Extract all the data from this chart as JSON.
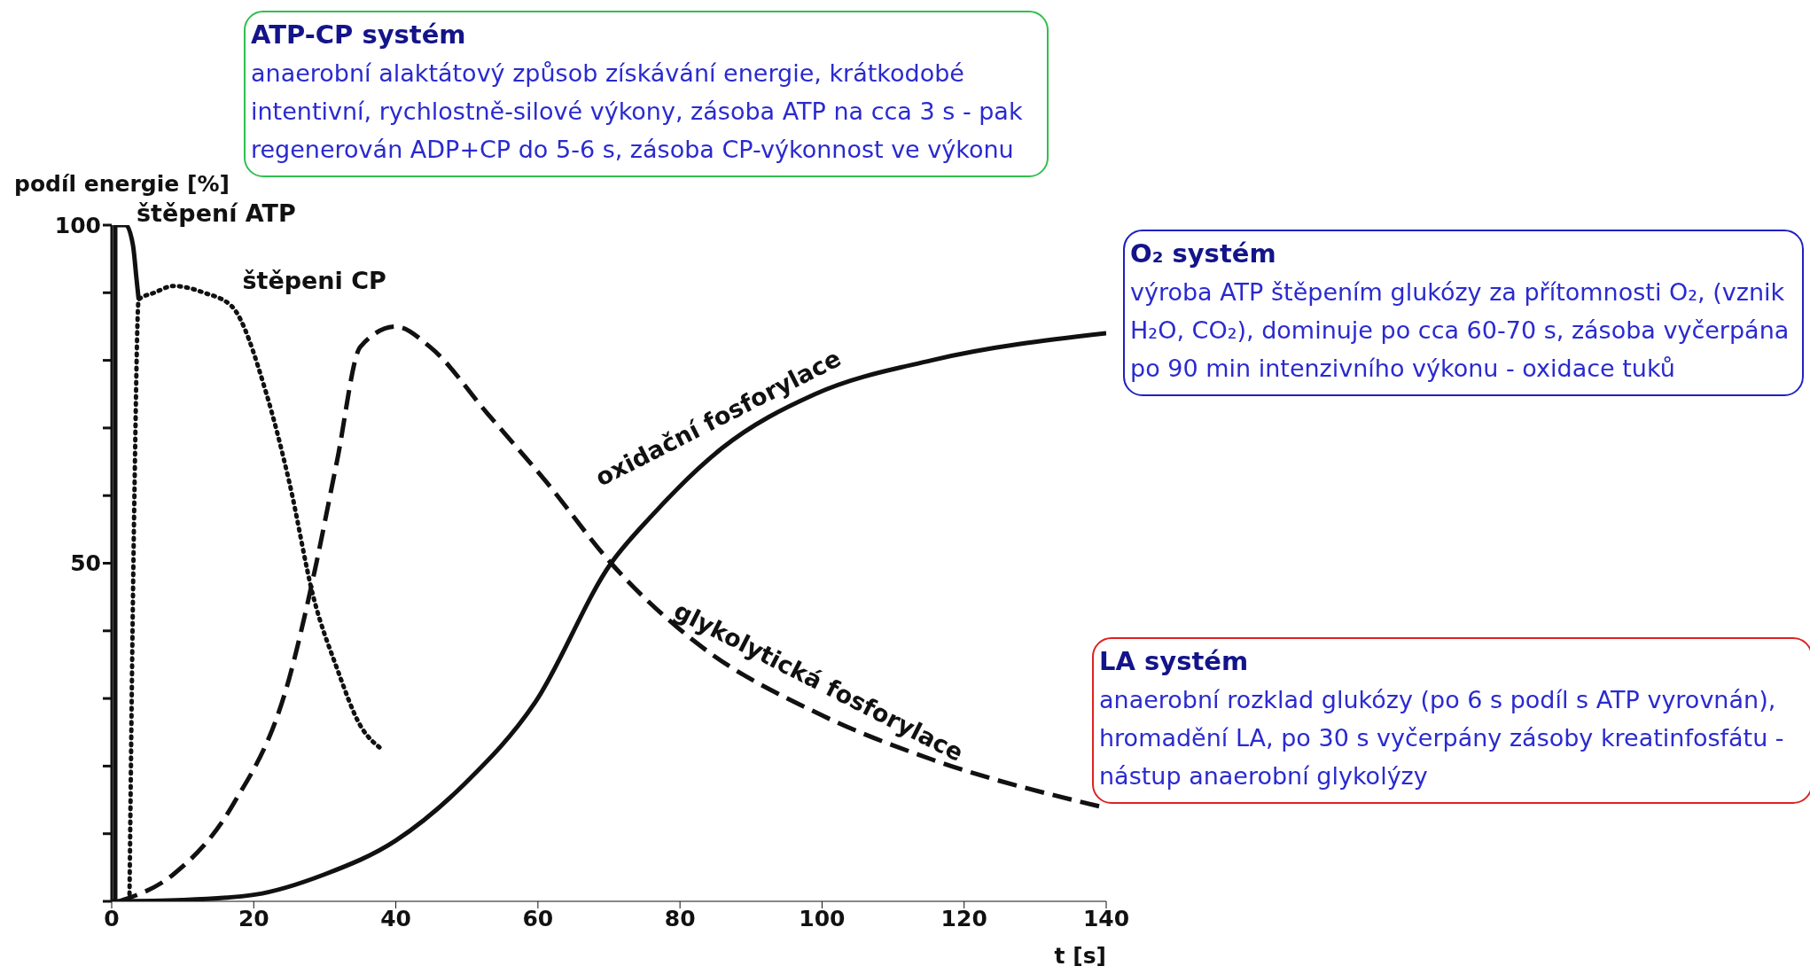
{
  "chart_data": {
    "type": "line",
    "ylabel": "podíl energie [%]",
    "xlabel": "t [s]",
    "xlim": [
      0,
      140
    ],
    "xticks": [
      0,
      20,
      40,
      60,
      80,
      100,
      120,
      140
    ],
    "ylim": [
      0,
      100
    ],
    "yticks": [
      {
        "value": 0,
        "label": null
      },
      {
        "value": 10,
        "label": null
      },
      {
        "value": 20,
        "label": null
      },
      {
        "value": 30,
        "label": null
      },
      {
        "value": 40,
        "label": null
      },
      50,
      {
        "value": 60,
        "label": null
      },
      {
        "value": 70,
        "label": null
      },
      {
        "value": 80,
        "label": null
      },
      {
        "value": 90,
        "label": null
      },
      100
    ],
    "series": [
      {
        "name": "štěpení ATP",
        "color": "#111111",
        "line_style": "solid",
        "x": [
          0.5,
          0.5,
          2,
          3,
          3.5,
          3.8
        ],
        "values": [
          0,
          100,
          100,
          97,
          92,
          89
        ]
      },
      {
        "name": "štěpeni CP",
        "color": "#111111",
        "line_style": "dotted",
        "x": [
          2.5,
          3.2,
          3.8,
          6,
          8.7,
          13,
          16.9,
          21.8,
          25,
          28.4,
          31.7,
          35,
          37.9
        ],
        "values": [
          0,
          60,
          89,
          90,
          91,
          90,
          88,
          75,
          62,
          45,
          34.5,
          26,
          22.6
        ]
      },
      {
        "name": "glykolytická fosforylace",
        "color": "#111111",
        "line_style": "dashed",
        "x": [
          1,
          8.7,
          16.9,
          25,
          28.4,
          31.7,
          35,
          40,
          44.8,
          53,
          61.2,
          70.3,
          82.6,
          99,
          115.4,
          139.2
        ],
        "values": [
          0,
          4,
          14,
          33,
          48,
          65,
          82,
          85,
          82,
          72,
          62,
          50,
          38,
          28,
          21,
          14
        ]
      },
      {
        "name": "oxidační fosforylace",
        "color": "#111111",
        "line_style": "solid",
        "x": [
          0,
          10,
          20.2,
          30,
          40,
          49.8,
          59.6,
          70.3,
          76,
          85.9,
          99,
          115.4,
          140
        ],
        "values": [
          0,
          0.2,
          1,
          4,
          9,
          17.5,
          29.4,
          50,
          57,
          67,
          75,
          80,
          84
        ]
      }
    ],
    "annotations": [
      "ATP-CP systém",
      "anaerobní alaktátový způsob získávání energie, krátkodobé intentivní, rychlostně-silové výkony, zásoba ATP na cca 3 s - pak regenerován ADP+CP do 5-6 s, zásoba CP-výkonnost ve výkonu",
      "O₂ systém",
      "výroba ATP štěpením glukózy za přítomnosti O₂, (vznik H₂O, CO₂), dominuje po cca 60-70 s, zásoba vyčerpána po 90 min intenzivního výkonu - oxidace tuků",
      "LA systém",
      "anaerobní rozklad glukózy (po 6 s podíl s ATP vyrovnán), hromadění LA, po 30 s vyčerpány zásoby kreatinfosfátu - nástup anaerobní glykolýzy"
    ]
  }
}
